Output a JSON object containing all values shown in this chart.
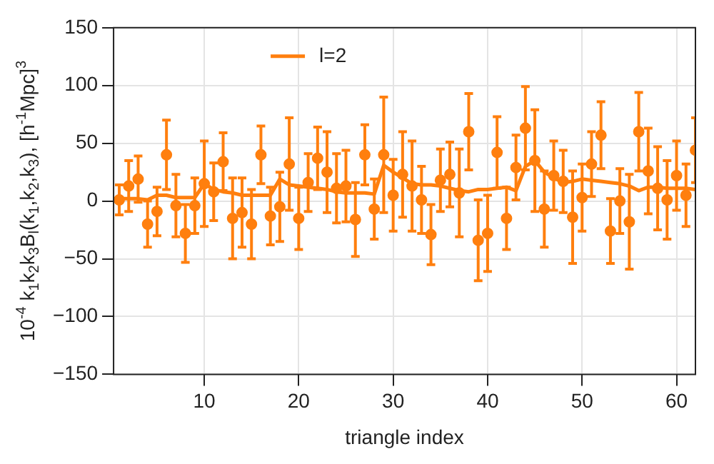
{
  "chart_data": {
    "type": "scatter",
    "xlabel": "triangle index",
    "ylabel": "10$^{-4}$ k$_{1}$k$_{2}$k$_{3}$B$_{l}$(k$_{1}$,k$_{2}$,k$_{3}$), [h$^{-1}$Mpc]$^{3}$",
    "x": [
      1,
      2,
      3,
      4,
      5,
      6,
      7,
      8,
      9,
      10,
      11,
      12,
      13,
      14,
      15,
      16,
      17,
      18,
      19,
      20,
      21,
      22,
      23,
      24,
      25,
      26,
      27,
      28,
      29,
      30,
      31,
      32,
      33,
      34,
      35,
      36,
      37,
      38,
      39,
      40,
      41,
      42,
      43,
      44,
      45,
      46,
      47,
      48,
      49,
      50,
      51,
      52,
      53,
      54,
      55,
      56,
      57,
      58,
      59,
      60,
      61,
      62
    ],
    "xlim": [
      0.4,
      62
    ],
    "xticks": [
      10,
      20,
      30,
      40,
      50,
      60
    ],
    "ylim": [
      -150,
      150
    ],
    "yticks": [
      -150,
      -100,
      -50,
      0,
      50,
      100,
      150
    ],
    "grid": true,
    "legend": "top left",
    "series": [
      {
        "type": "scatter",
        "color": "#ff7f0e",
        "marker": "circle",
        "values": [
          1,
          13,
          19,
          -20,
          -9,
          40,
          -4,
          -28,
          -4,
          15,
          8,
          34,
          -15,
          -10,
          -20,
          40,
          -13,
          -5,
          32,
          -15,
          16,
          37,
          25,
          11,
          13,
          -16,
          40,
          -7,
          40,
          5,
          23,
          13,
          1,
          -29,
          18,
          23,
          7,
          60,
          -34,
          -28,
          42,
          -15,
          29,
          63,
          35,
          -7,
          22,
          17,
          -14,
          3,
          32,
          57,
          -26,
          0,
          -18,
          60,
          26,
          11,
          1,
          22,
          5,
          44
        ],
        "errors": [
          13,
          22,
          20,
          20,
          21,
          30,
          27,
          25,
          24,
          37,
          25,
          25,
          35,
          30,
          30,
          25,
          25,
          30,
          40,
          27,
          25,
          27,
          35,
          30,
          31,
          32,
          26,
          26,
          50,
          31,
          37,
          39,
          29,
          26,
          27,
          28,
          38,
          33,
          35,
          33,
          31,
          27,
          28,
          36,
          44,
          33,
          30,
          27,
          40,
          29,
          28,
          29,
          28,
          28,
          41,
          34,
          37,
          36,
          34,
          30,
          27,
          28
        ]
      },
      {
        "type": "line",
        "name": "l=2",
        "color": "#ff7f0e",
        "marker": "none",
        "line_style": "solid",
        "values": [
          2,
          2,
          2,
          1,
          5,
          5,
          3,
          3,
          3,
          15,
          10,
          8,
          7,
          5,
          5,
          5,
          5,
          19,
          14,
          13,
          12,
          11,
          10,
          8,
          7,
          7,
          7,
          6,
          31,
          25,
          20,
          15,
          14,
          14,
          13,
          11,
          9,
          8,
          10,
          10,
          11,
          12,
          9,
          30,
          35,
          25,
          20,
          16,
          17,
          19,
          18,
          17,
          16,
          15,
          13,
          9,
          12,
          12,
          11,
          11,
          11,
          10
        ]
      }
    ]
  }
}
